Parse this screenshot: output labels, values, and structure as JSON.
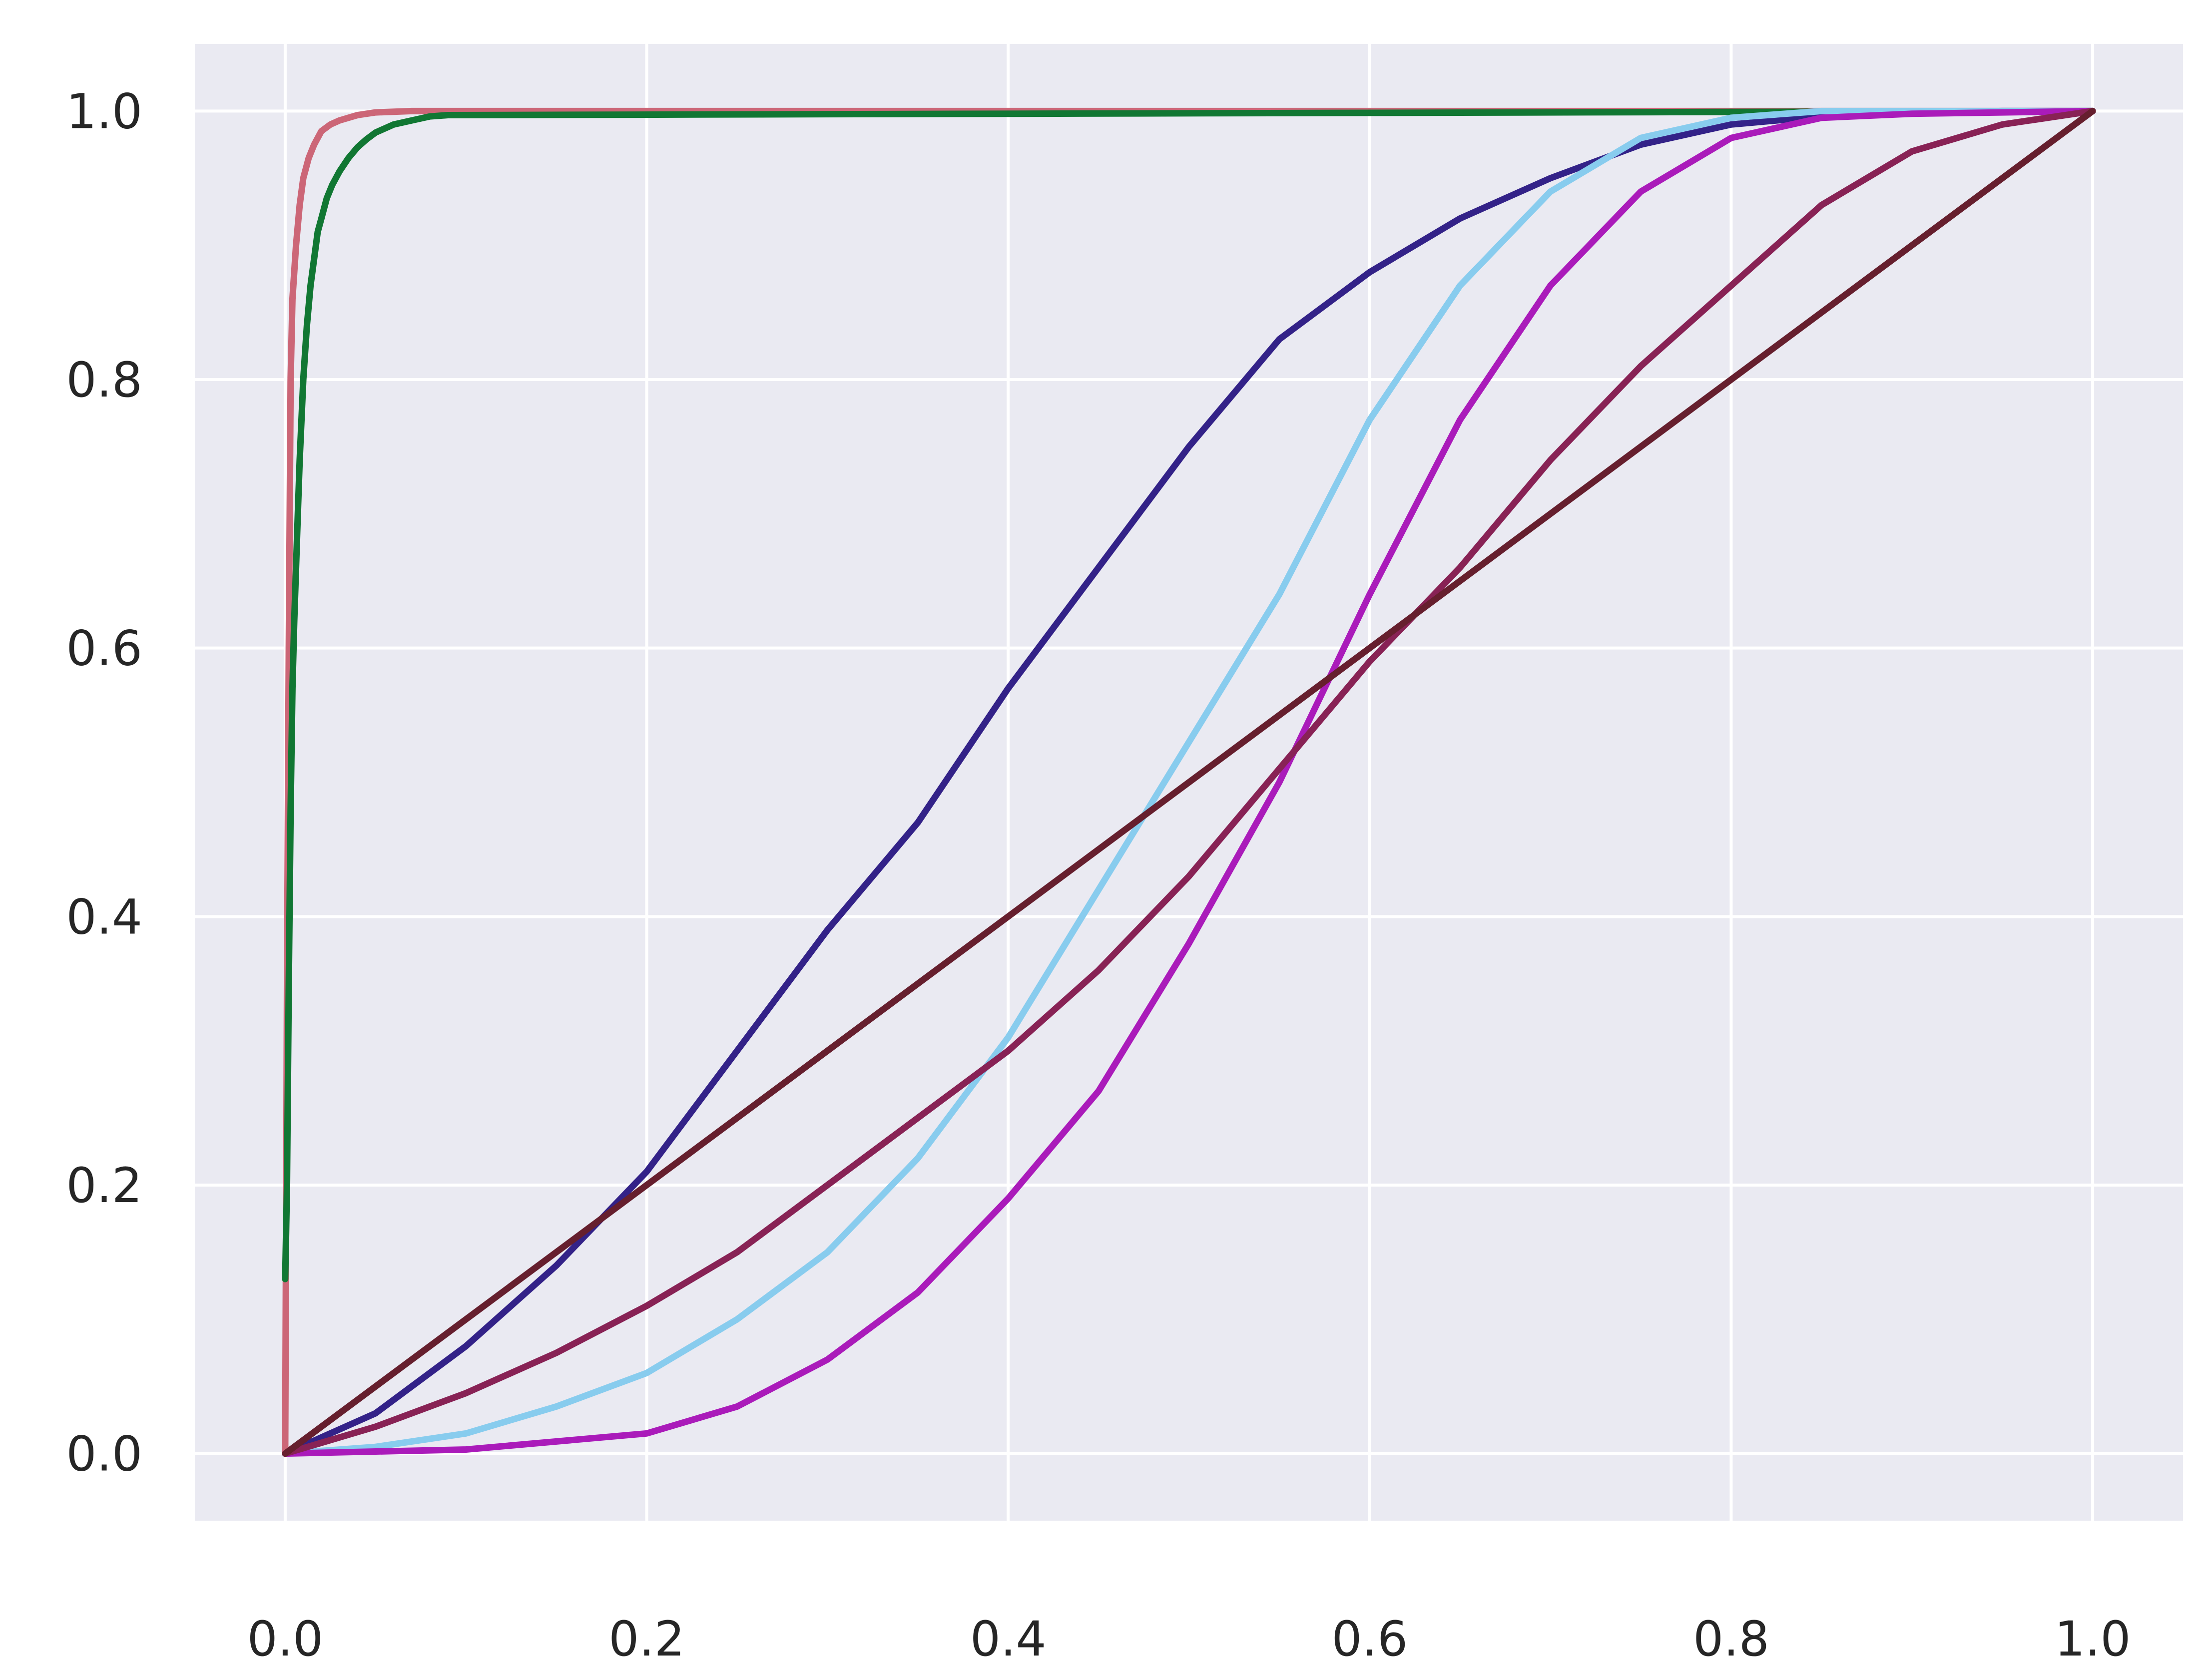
{
  "chart_data": {
    "type": "line",
    "title": "",
    "xlabel": "",
    "ylabel": "",
    "xlim": [
      -0.05,
      1.05
    ],
    "ylim": [
      -0.05,
      1.05
    ],
    "grid": true,
    "legend": "none",
    "x_ticks": [
      "0.0",
      "0.2",
      "0.4",
      "0.6",
      "0.8",
      "1.0"
    ],
    "y_ticks": [
      "0.0",
      "0.2",
      "0.4",
      "0.6",
      "0.8",
      "1.0"
    ],
    "x_tick_values": [
      0,
      0.2,
      0.4,
      0.6,
      0.8,
      1.0
    ],
    "y_tick_values": [
      0,
      0.2,
      0.4,
      0.6,
      0.8,
      1.0
    ],
    "colors": {
      "plot_background": "#eaeaf2",
      "grid": "#ffffff",
      "figure_background": "#ffffff",
      "tick_text": "#262626"
    },
    "series": [
      {
        "color": "#cc6677",
        "x": [
          0.0,
          0.001,
          0.002,
          0.003,
          0.004,
          0.006,
          0.008,
          0.01,
          0.013,
          0.016,
          0.02,
          0.025,
          0.03,
          0.04,
          0.05,
          0.07,
          0.09,
          1.0
        ],
        "y": [
          0.0,
          0.35,
          0.6,
          0.8,
          0.86,
          0.9,
          0.93,
          0.95,
          0.965,
          0.975,
          0.985,
          0.99,
          0.993,
          0.997,
          0.999,
          1.0,
          1.0,
          1.0
        ]
      },
      {
        "color": "#117733",
        "x": [
          0.0,
          0.001,
          0.002,
          0.003,
          0.004,
          0.005,
          0.006,
          0.007,
          0.008,
          0.009,
          0.01,
          0.012,
          0.014,
          0.016,
          0.018,
          0.02,
          0.023,
          0.026,
          0.03,
          0.035,
          0.04,
          0.045,
          0.05,
          0.06,
          0.07,
          0.08,
          0.09,
          1.0
        ],
        "y": [
          0.13,
          0.2,
          0.35,
          0.48,
          0.57,
          0.62,
          0.66,
          0.7,
          0.74,
          0.77,
          0.8,
          0.84,
          0.87,
          0.89,
          0.91,
          0.92,
          0.935,
          0.945,
          0.955,
          0.965,
          0.973,
          0.979,
          0.984,
          0.99,
          0.993,
          0.996,
          0.997,
          1.0
        ]
      },
      {
        "color": "#332288",
        "x": [
          0.0,
          0.05,
          0.1,
          0.15,
          0.2,
          0.25,
          0.3,
          0.35,
          0.4,
          0.45,
          0.5,
          0.55,
          0.6,
          0.65,
          0.7,
          0.75,
          0.8,
          0.85,
          0.9,
          0.95,
          1.0
        ],
        "y": [
          0.0,
          0.03,
          0.08,
          0.14,
          0.21,
          0.3,
          0.39,
          0.47,
          0.57,
          0.66,
          0.75,
          0.83,
          0.88,
          0.92,
          0.95,
          0.975,
          0.99,
          0.996,
          0.999,
          1.0,
          1.0
        ]
      },
      {
        "color": "#88ccee",
        "x": [
          0.0,
          0.05,
          0.1,
          0.15,
          0.2,
          0.25,
          0.3,
          0.35,
          0.4,
          0.45,
          0.5,
          0.55,
          0.6,
          0.65,
          0.7,
          0.75,
          0.8,
          0.85,
          0.9,
          0.95,
          1.0
        ],
        "y": [
          0.0,
          0.005,
          0.015,
          0.035,
          0.06,
          0.1,
          0.15,
          0.22,
          0.31,
          0.42,
          0.53,
          0.64,
          0.77,
          0.87,
          0.94,
          0.98,
          0.995,
          1.0,
          1.0,
          1.0,
          1.0
        ]
      },
      {
        "color": "#aa1bba",
        "x": [
          0.0,
          0.1,
          0.2,
          0.25,
          0.3,
          0.35,
          0.4,
          0.45,
          0.5,
          0.55,
          0.6,
          0.65,
          0.7,
          0.75,
          0.8,
          0.85,
          0.9,
          0.95,
          1.0
        ],
        "y": [
          0.0,
          0.003,
          0.015,
          0.035,
          0.07,
          0.12,
          0.19,
          0.27,
          0.38,
          0.5,
          0.64,
          0.77,
          0.87,
          0.94,
          0.98,
          0.995,
          0.998,
          0.999,
          1.0
        ]
      },
      {
        "color": "#882255",
        "x": [
          0.0,
          0.05,
          0.1,
          0.15,
          0.2,
          0.25,
          0.3,
          0.35,
          0.4,
          0.45,
          0.5,
          0.55,
          0.6,
          0.65,
          0.7,
          0.75,
          0.8,
          0.85,
          0.9,
          0.95,
          1.0
        ],
        "y": [
          0.0,
          0.02,
          0.045,
          0.075,
          0.11,
          0.15,
          0.2,
          0.25,
          0.3,
          0.36,
          0.43,
          0.51,
          0.59,
          0.66,
          0.74,
          0.81,
          0.87,
          0.93,
          0.97,
          0.99,
          1.0
        ]
      },
      {
        "color": "#661f2e",
        "x": [
          0.0,
          1.0
        ],
        "y": [
          0.0,
          1.0
        ]
      }
    ]
  }
}
